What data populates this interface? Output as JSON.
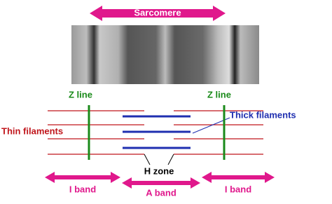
{
  "title": "Sarcomere",
  "labels": {
    "z_line_left": "Z line",
    "z_line_right": "Z line",
    "thin": "Thin filaments",
    "thick": "Thick filaments",
    "h_zone": "H zone",
    "a_band": "A band",
    "i_band_left": "I band",
    "i_band_right": "I band"
  }
}
